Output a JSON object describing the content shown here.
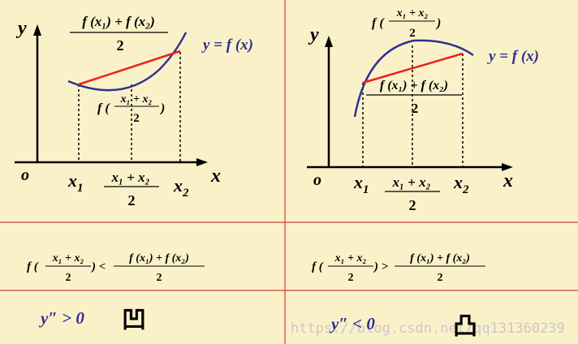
{
  "colors": {
    "background": "#fbf1c9",
    "grid_line": "#d0413e",
    "axis": "#000000",
    "curve": "#2e3192",
    "chord": "#e8231f",
    "guide": "#000000",
    "watermark": "#c9c9c9"
  },
  "left_panel": {
    "axis_y": "y",
    "axis_x": "x",
    "origin": "o",
    "x1_main": "x",
    "x1_sub": "1",
    "x2_main": "x",
    "x2_sub": "2",
    "mid_num": "x₁ + x₂",
    "mid_den": "2",
    "curve_label": "y = f (x)",
    "top_num": "f (x₁) + f (x₂)",
    "top_den": "2",
    "inner_f": "f (",
    "inner_num": "x₁ + x₂",
    "inner_den": "2",
    "inner_close": ")"
  },
  "right_panel": {
    "axis_y": "y",
    "axis_x": "x",
    "origin": "o",
    "x1_main": "x",
    "x1_sub": "1",
    "x2_main": "x",
    "x2_sub": "2",
    "mid_num": "x₁ + x₂",
    "mid_den": "2",
    "curve_label": "y = f (x)",
    "top_f": "f (",
    "top_num": "x₁ + x₂",
    "top_den": "2",
    "top_close": ")",
    "inner_num": "f (x₁) + f (x₂)",
    "inner_den": "2"
  },
  "inequality_left": {
    "f_open": "f (",
    "lhs_num": "x₁ + x₂",
    "lhs_den": "2",
    "close_op": ") <",
    "rhs_num": "f (x₁) + f (x₂)",
    "rhs_den": "2"
  },
  "inequality_right": {
    "f_open": "f (",
    "lhs_num": "x₁ + x₂",
    "lhs_den": "2",
    "close_op": ") >",
    "rhs_num": "f (x₁) + f (x₂)",
    "rhs_den": "2"
  },
  "conclusion_left": {
    "condition": "y″ > 0",
    "word": "凹"
  },
  "conclusion_right": {
    "condition": "y″ < 0",
    "word": "凸"
  },
  "watermark": "https://blog.csdn.net/qq131360239"
}
